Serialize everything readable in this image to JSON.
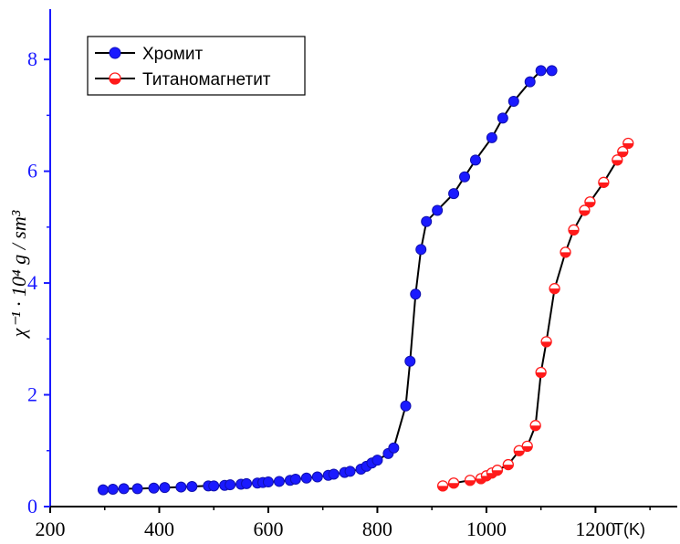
{
  "chart_data": {
    "type": "line",
    "title": "",
    "xlabel": "T(K)",
    "ylabel": "χ⁻¹ · 10⁴ g / sm³",
    "xlim": [
      200,
      1350
    ],
    "ylim": [
      0,
      8.9
    ],
    "x_ticks": [
      "200",
      "400",
      "600",
      "800",
      "1000",
      "1200"
    ],
    "y_ticks": [
      "0",
      "2",
      "4",
      "6",
      "8"
    ],
    "legend_position": "top-left",
    "grid": false,
    "colors": {
      "axis_y": "#1a1aff",
      "line": "#000000",
      "series_1": "#1a1aff",
      "series_2": "#ff1a1a"
    },
    "series": [
      {
        "name": "Хромит",
        "marker": "filled-circle",
        "x": [
          297,
          315,
          335,
          360,
          390,
          410,
          440,
          460,
          490,
          500,
          520,
          530,
          550,
          560,
          580,
          590,
          600,
          620,
          640,
          650,
          670,
          690,
          710,
          720,
          740,
          750,
          770,
          780,
          790,
          800,
          820,
          830,
          852,
          860,
          870,
          880,
          890,
          910,
          940,
          960,
          980,
          1010,
          1030,
          1050,
          1080,
          1100,
          1120
        ],
        "y": [
          0.3,
          0.31,
          0.32,
          0.32,
          0.33,
          0.34,
          0.35,
          0.36,
          0.37,
          0.37,
          0.38,
          0.39,
          0.4,
          0.41,
          0.42,
          0.43,
          0.44,
          0.45,
          0.47,
          0.49,
          0.51,
          0.53,
          0.56,
          0.58,
          0.61,
          0.63,
          0.67,
          0.72,
          0.78,
          0.83,
          0.95,
          1.05,
          1.8,
          2.6,
          3.8,
          4.6,
          5.1,
          5.3,
          5.6,
          5.9,
          6.2,
          6.6,
          6.95,
          7.25,
          7.6,
          7.8,
          7.8
        ]
      },
      {
        "name": "Титаномагнетит",
        "marker": "half-filled-circle",
        "x": [
          920,
          940,
          970,
          990,
          1000,
          1010,
          1020,
          1040,
          1060,
          1075,
          1090,
          1100,
          1110,
          1125,
          1145,
          1160,
          1180,
          1190,
          1215,
          1240,
          1250,
          1260
        ],
        "y": [
          0.37,
          0.42,
          0.47,
          0.5,
          0.55,
          0.6,
          0.65,
          0.75,
          1.0,
          1.08,
          1.45,
          2.4,
          2.95,
          3.9,
          4.55,
          4.95,
          5.3,
          5.45,
          5.8,
          6.2,
          6.35,
          6.5
        ]
      }
    ]
  }
}
